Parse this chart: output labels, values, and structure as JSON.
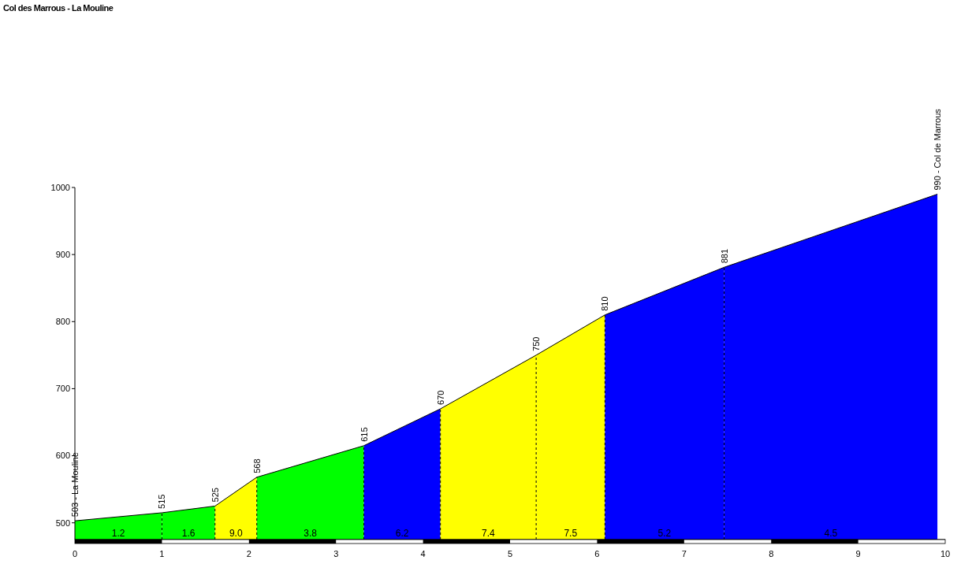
{
  "chart_data": {
    "type": "area",
    "title": "Col des Marrous - La Mouline",
    "series": [
      {
        "name": "1.2",
        "color": "#00ff00",
        "x": [
          0,
          1.0
        ],
        "values": [
          503,
          515
        ],
        "value_labels": [
          "503 - La Mouline",
          null
        ]
      },
      {
        "name": "1.6",
        "color": "#00ff00",
        "x": [
          1.0,
          1.61
        ],
        "values": [
          515,
          525
        ],
        "value_labels": [
          "515",
          null
        ]
      },
      {
        "name": "9.0",
        "color": "#ffff00",
        "x": [
          1.61,
          2.09
        ],
        "values": [
          525,
          568
        ],
        "value_labels": [
          "525",
          null
        ]
      },
      {
        "name": "3.8",
        "color": "#00ff00",
        "x": [
          2.09,
          3.32
        ],
        "values": [
          568,
          615
        ],
        "value_labels": [
          "568",
          null
        ]
      },
      {
        "name": "6.2",
        "color": "#0000ff",
        "x": [
          3.32,
          4.2
        ],
        "values": [
          615,
          670
        ],
        "value_labels": [
          "615",
          null
        ]
      },
      {
        "name": "7.4",
        "color": "#ffff00",
        "x": [
          4.2,
          5.3
        ],
        "values": [
          670,
          750
        ],
        "value_labels": [
          "670",
          null
        ]
      },
      {
        "name": "7.5",
        "color": "#ffff00",
        "x": [
          5.3,
          6.09
        ],
        "values": [
          750,
          810
        ],
        "value_labels": [
          "750",
          null
        ]
      },
      {
        "name": "5.2",
        "color": "#0000ff",
        "x": [
          6.09,
          7.46
        ],
        "values": [
          810,
          881
        ],
        "value_labels": [
          "810",
          null
        ]
      },
      {
        "name": "4.5",
        "color": "#0000ff",
        "x": [
          7.46,
          9.91
        ],
        "values": [
          881,
          990
        ],
        "value_labels": [
          "881",
          "990 - Col de Marrous"
        ]
      }
    ],
    "xlim": [
      0,
      10
    ],
    "xticks": [
      0,
      1,
      2,
      3,
      4,
      5,
      6,
      7,
      8,
      9,
      10
    ],
    "ylim": [
      475,
      1000
    ],
    "yticks": [
      500,
      600,
      700,
      800,
      900,
      1000
    ],
    "grid": false,
    "legend": false
  }
}
